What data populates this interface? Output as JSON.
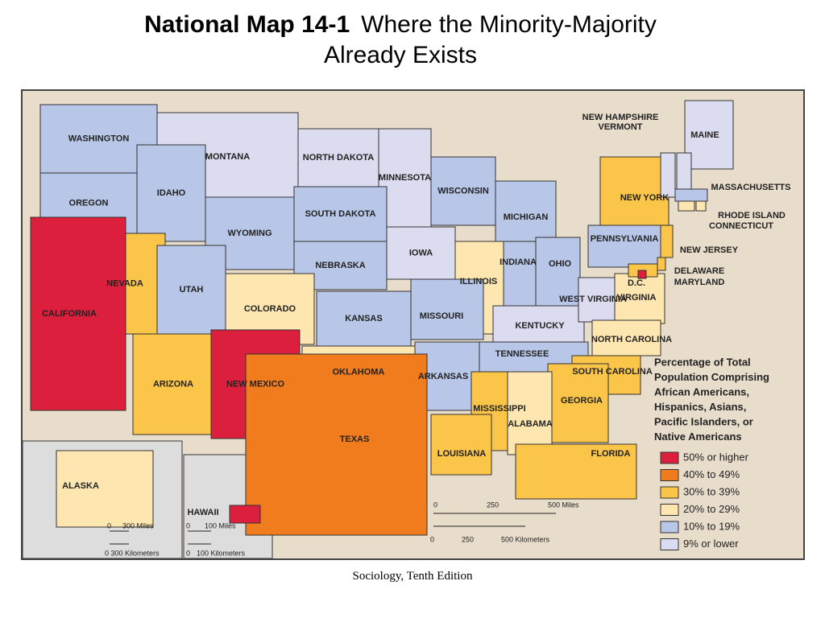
{
  "header": {
    "title_bold": "National Map 14-1",
    "title_rest": "Where the Minority-Majority",
    "title_line2": "Already Exists"
  },
  "legend": {
    "title_lines": [
      "Percentage of Total",
      "Population Comprising",
      "African Americans,",
      "Hispanics, Asians,",
      "Pacific Islanders, or",
      "Native Americans"
    ],
    "items": [
      {
        "label": "50% or higher",
        "color": "#dc1f3c"
      },
      {
        "label": "40% to 49%",
        "color": "#f07c1e"
      },
      {
        "label": "30% to 39%",
        "color": "#fbc54a"
      },
      {
        "label": "20% to 29%",
        "color": "#fde6b0"
      },
      {
        "label": "10% to 19%",
        "color": "#b8c6e8"
      },
      {
        "label": "9% or lower",
        "color": "#dcdcf0"
      }
    ]
  },
  "states": [
    {
      "label": "WASHINGTON",
      "level": 4
    },
    {
      "label": "MONTANA",
      "level": 5
    },
    {
      "label": "NORTH DAKOTA",
      "level": 5
    },
    {
      "label": "MINNESOTA",
      "level": 5
    },
    {
      "label": "OREGON",
      "level": 4
    },
    {
      "label": "IDAHO",
      "level": 4
    },
    {
      "label": "WYOMING",
      "level": 4
    },
    {
      "label": "SOUTH DAKOTA",
      "level": 4
    },
    {
      "label": "WISCONSIN",
      "level": 4
    },
    {
      "label": "MICHIGAN",
      "level": 4
    },
    {
      "label": "IOWA",
      "level": 5
    },
    {
      "label": "NEBRASKA",
      "level": 4
    },
    {
      "label": "NEVADA",
      "level": 2
    },
    {
      "label": "CALIFORNIA",
      "level": 0
    },
    {
      "label": "UTAH",
      "level": 4
    },
    {
      "label": "COLORADO",
      "level": 3
    },
    {
      "label": "KANSAS",
      "level": 4
    },
    {
      "label": "ILLINOIS",
      "level": 3
    },
    {
      "label": "INDIANA",
      "level": 4
    },
    {
      "label": "OHIO",
      "level": 4
    },
    {
      "label": "PENNSYLVANIA",
      "level": 4
    },
    {
      "label": "NEW YORK",
      "level": 2
    },
    {
      "label": "MISSOURI",
      "level": 4
    },
    {
      "label": "ARIZONA",
      "level": 2
    },
    {
      "label": "NEW MEXICO",
      "level": 0
    },
    {
      "label": "OKLAHOMA",
      "level": 3
    },
    {
      "label": "ARKANSAS",
      "level": 4
    },
    {
      "label": "TEXAS",
      "level": 1
    },
    {
      "label": "KENTUCKY",
      "level": 5
    },
    {
      "label": "WEST VIRGINIA",
      "level": 5
    },
    {
      "label": "VIRGINIA",
      "level": 3
    },
    {
      "label": "TENNESSEE",
      "level": 4
    },
    {
      "label": "NORTH CAROLINA",
      "level": 3
    },
    {
      "label": "SOUTH CAROLINA",
      "level": 2
    },
    {
      "label": "GEORGIA",
      "level": 2
    },
    {
      "label": "ALABAMA",
      "level": 3
    },
    {
      "label": "MISSISSIPPI",
      "level": 2
    },
    {
      "label": "LOUISIANA",
      "level": 2
    },
    {
      "label": "FLORIDA",
      "level": 2
    },
    {
      "label": "MAINE",
      "level": 5
    },
    {
      "label": "NEW HAMPSHIRE",
      "level": 5
    },
    {
      "label": "VERMONT",
      "level": 5
    },
    {
      "label": "MASSACHUSETTS",
      "level": 4
    },
    {
      "label": "RHODE ISLAND",
      "level": 3
    },
    {
      "label": "CONNECTICUT",
      "level": 3
    },
    {
      "label": "NEW JERSEY",
      "level": 2
    },
    {
      "label": "DELAWARE",
      "level": 2
    },
    {
      "label": "MARYLAND",
      "level": 2
    },
    {
      "label": "D.C.",
      "level": 0
    },
    {
      "label": "ALASKA",
      "level": 3
    },
    {
      "label": "HAWAII",
      "level": 0
    }
  ],
  "scale_main": {
    "miles": [
      "0",
      "250",
      "500 Miles"
    ],
    "km": [
      "0",
      "250",
      "500 Kilometers"
    ]
  },
  "scale_alaska": {
    "miles": [
      "0",
      "300 Miles"
    ],
    "km": "0 300 Kilometers"
  },
  "scale_hawaii": {
    "miles": [
      "0",
      "100 Miles"
    ],
    "km": [
      "0",
      "100 Kilometers"
    ]
  },
  "footer": "Sociology, Tenth Edition"
}
